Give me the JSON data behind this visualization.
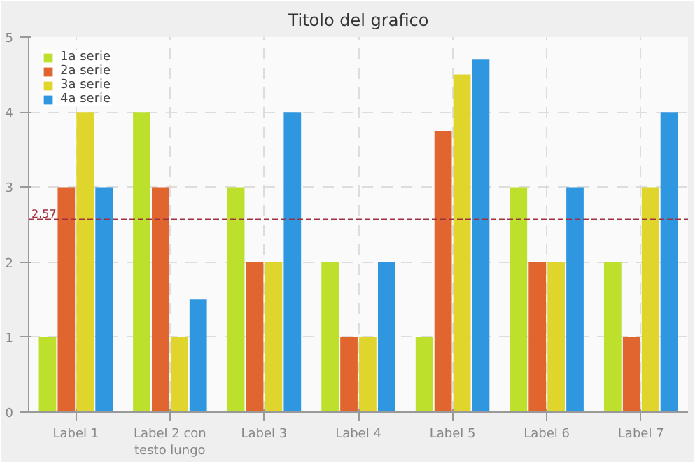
{
  "chart_data": {
    "type": "bar",
    "title": "Titolo del grafico",
    "categories": [
      "Label 1",
      "Label 2 con testo lungo",
      "Label 3",
      "Label 4",
      "Label 5",
      "Label 6",
      "Label 7"
    ],
    "series": [
      {
        "name": "1a serie",
        "color": "#bde02d",
        "values": [
          1,
          4,
          3,
          2,
          1,
          3,
          2
        ]
      },
      {
        "name": "2a serie",
        "color": "#e0652e",
        "values": [
          3,
          3,
          2,
          1,
          3.75,
          2,
          1
        ]
      },
      {
        "name": "3a serie",
        "color": "#e0d52d",
        "values": [
          4,
          1,
          2,
          1,
          4.5,
          2,
          3
        ]
      },
      {
        "name": "4a serie",
        "color": "#2f97e0",
        "values": [
          3,
          1.5,
          4,
          2,
          4.7,
          3,
          4
        ]
      }
    ],
    "ylim": [
      0,
      5
    ],
    "yticks": [
      0,
      1,
      2,
      3,
      4,
      5
    ],
    "grid": true,
    "legend": "top left",
    "ref_lines": [
      {
        "axis": "y",
        "value": 2.57,
        "label": "2.57",
        "color": "#a03040",
        "line_style": "dashed"
      }
    ]
  }
}
